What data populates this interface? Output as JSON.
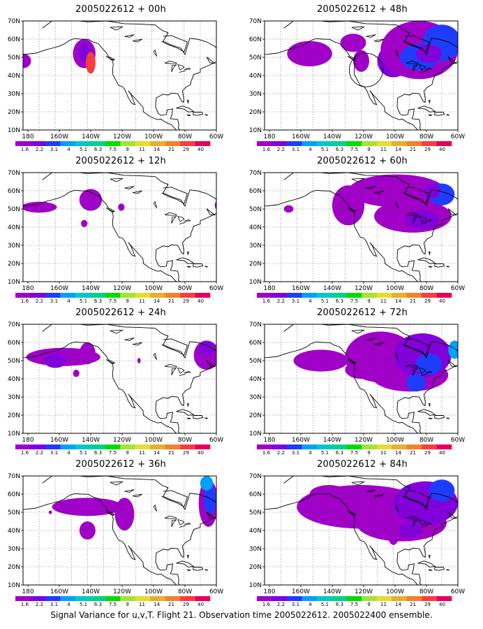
{
  "figure": {
    "caption": "Signal Variance for u,v,T. Flight 21. Observation time 2005022612. 2005022400 ensemble."
  },
  "axes": {
    "lat_labels": [
      "70N",
      "60N",
      "50N",
      "40N",
      "30N",
      "20N",
      "10N"
    ],
    "lon_labels": [
      "180",
      "160W",
      "140W",
      "120W",
      "100W",
      "80W",
      "60W"
    ]
  },
  "colorbar": {
    "levels": [
      "1.6",
      "2.2",
      "3.1",
      "4",
      "5.1",
      "6.3",
      "7.5",
      "9",
      "11",
      "14",
      "21",
      "29",
      "40"
    ],
    "colors": [
      "#a000c8",
      "#8200dc",
      "#1e3cff",
      "#00a0ff",
      "#00c8c8",
      "#00d28c",
      "#00dc00",
      "#a0e632",
      "#e6dc32",
      "#e6af2d",
      "#f08228",
      "#fa3c3c",
      "#e6005a"
    ]
  },
  "panels": [
    {
      "title": "2005022612 + 00h",
      "forecast_hour": 0
    },
    {
      "title": "2005022612 + 48h",
      "forecast_hour": 48
    },
    {
      "title": "2005022612 + 12h",
      "forecast_hour": 12
    },
    {
      "title": "2005022612 + 60h",
      "forecast_hour": 60
    },
    {
      "title": "2005022612 + 24h",
      "forecast_hour": 24
    },
    {
      "title": "2005022612 + 72h",
      "forecast_hour": 72
    },
    {
      "title": "2005022612 + 36h",
      "forecast_hour": 36
    },
    {
      "title": "2005022612 + 84h",
      "forecast_hour": 84
    }
  ]
}
